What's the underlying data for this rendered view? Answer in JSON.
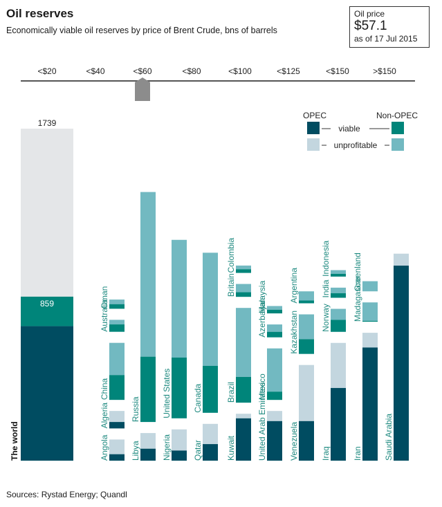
{
  "header": {
    "title": "Oil reserves",
    "subtitle": "Economically viable oil reserves by price of Brent Crude, bns of barrels"
  },
  "price_box": {
    "label": "Oil price",
    "value": "$57.1",
    "date": "as of 17 Jul 2015"
  },
  "source": "Sources: Rystad Energy; Quandl",
  "colors": {
    "opec_viable": "#004c61",
    "opec_unprofitable": "#c3d6df",
    "nonopec_viable": "#00857a",
    "nonopec_unprofitable": "#72b9c1",
    "world_unprofitable": "#e4e6e8",
    "label_text": "#1f8a80",
    "axis": "#555555",
    "marker": "#8c8c8c"
  },
  "chart_data": {
    "type": "bar",
    "title": "Oil reserves",
    "subtitle": "Economically viable oil reserves by price of Brent Crude, bns of barrels",
    "stacked": true,
    "price_bands": [
      "<$20",
      "<$40",
      "<$60",
      "<$80",
      "<$100",
      "<$125",
      "<$150",
      ">$150"
    ],
    "current_price_band": "<$60",
    "legend": {
      "opec": "OPEC",
      "non_opec": "Non-OPEC",
      "viable": "viable",
      "unprofitable": "unprofitable"
    },
    "world": {
      "label": "The world",
      "total": 1739,
      "viable": 859,
      "total_label": "1739",
      "viable_label": "859"
    },
    "columns": [
      {
        "band": "<$40",
        "countries": [
          {
            "name": "Oman",
            "group": "non-opec",
            "viable": 5,
            "unprofitable": 5
          },
          {
            "name": "Australia",
            "group": "non-opec",
            "viable": 8,
            "unprofitable": 5
          },
          {
            "name": "China",
            "group": "non-opec",
            "viable": 27,
            "unprofitable": 35
          },
          {
            "name": "Algeria",
            "group": "opec",
            "viable": 7,
            "unprofitable": 12
          },
          {
            "name": "Angola",
            "group": "opec",
            "viable": 7,
            "unprofitable": 16
          }
        ]
      },
      {
        "band": "<$60",
        "countries": [
          {
            "name": "Russia",
            "group": "non-opec",
            "viable": 71,
            "unprofitable": 179
          },
          {
            "name": "Libya",
            "group": "opec",
            "viable": 13,
            "unprofitable": 17
          }
        ]
      },
      {
        "band": "<$80",
        "countries": [
          {
            "name": "United States",
            "group": "non-opec",
            "viable": 66,
            "unprofitable": 128
          },
          {
            "name": "Nigeria",
            "group": "opec",
            "viable": 11,
            "unprofitable": 23
          }
        ]
      },
      {
        "band": "<$100",
        "countries": [
          {
            "name": "Canada",
            "group": "non-opec",
            "viable": 51,
            "unprofitable": 123
          },
          {
            "name": "Qatar",
            "group": "opec",
            "viable": 18,
            "unprofitable": 22
          }
        ]
      },
      {
        "band": "<$100",
        "countries": [
          {
            "name": "Colombia",
            "group": "non-opec",
            "viable": 4,
            "unprofitable": 4
          },
          {
            "name": "Britain",
            "group": "non-opec",
            "viable": 5,
            "unprofitable": 9
          },
          {
            "name": "Brazil",
            "group": "non-opec",
            "viable": 28,
            "unprofitable": 75
          },
          {
            "name": "Kuwait",
            "group": "opec",
            "viable": 46,
            "unprofitable": 5
          }
        ]
      },
      {
        "band": "<$125",
        "countries": [
          {
            "name": "Malaysia",
            "group": "non-opec",
            "viable": 4,
            "unprofitable": 4
          },
          {
            "name": "Azerbaijan",
            "group": "non-opec",
            "viable": 6,
            "unprofitable": 8
          },
          {
            "name": "Mexico",
            "group": "non-opec",
            "viable": 9,
            "unprofitable": 47
          },
          {
            "name": "United Arab Emirates",
            "group": "opec",
            "viable": 43,
            "unprofitable": 11
          }
        ]
      },
      {
        "band": "<$125",
        "countries": [
          {
            "name": "Argentina",
            "group": "non-opec",
            "viable": 3,
            "unprofitable": 10
          },
          {
            "name": "Kazakhstan",
            "group": "non-opec",
            "viable": 16,
            "unprofitable": 27
          },
          {
            "name": "Venezuela",
            "group": "opec",
            "viable": 43,
            "unprofitable": 61
          }
        ]
      },
      {
        "band": "<$150",
        "countries": [
          {
            "name": "Indonesia",
            "group": "non-opec",
            "viable": 3,
            "unprofitable": 4
          },
          {
            "name": "India",
            "group": "non-opec",
            "viable": 5,
            "unprofitable": 6
          },
          {
            "name": "Norway",
            "group": "non-opec",
            "viable": 13,
            "unprofitable": 12
          },
          {
            "name": "Iraq",
            "group": "opec",
            "viable": 79,
            "unprofitable": 49
          }
        ]
      },
      {
        "band": "<$150",
        "countries": [
          {
            "name": "Greenland",
            "group": "non-opec",
            "viable": 0,
            "unprofitable": 11
          },
          {
            "name": "Madagascar",
            "group": "non-opec",
            "viable": 1,
            "unprofitable": 20
          },
          {
            "name": "Iran",
            "group": "opec",
            "viable": 123,
            "unprofitable": 16
          }
        ]
      },
      {
        "band": ">$150",
        "countries": [
          {
            "name": "Saudi Arabia",
            "group": "opec",
            "viable": 212,
            "unprofitable": 13
          }
        ]
      }
    ]
  }
}
